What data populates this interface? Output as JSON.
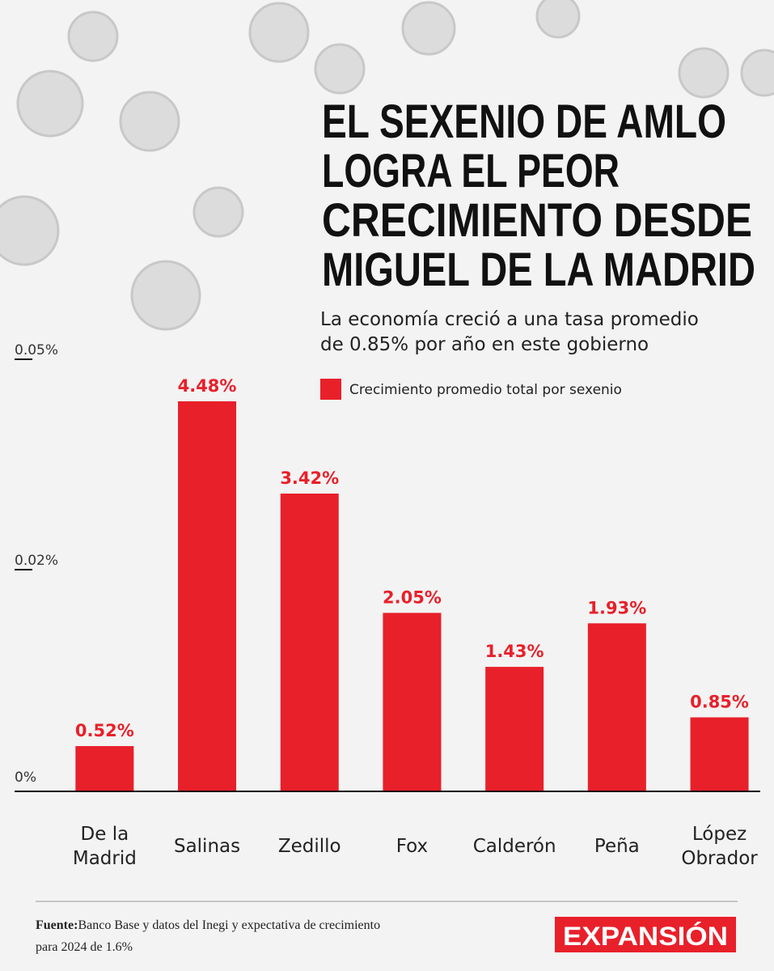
{
  "chart_data": {
    "type": "bar",
    "title_lines": [
      "EL SEXENIO DE AMLO",
      "LOGRA EL PEOR",
      "CRECIMIENTO DESDE",
      "MIGUEL DE LA MADRID"
    ],
    "subtitle_lines": [
      "La economía creció a una tasa promedio",
      "de 0.85% por año en este gobierno"
    ],
    "categories": [
      "De la Madrid",
      "Salinas",
      "Zedillo",
      "Fox",
      "Calderón",
      "Peña",
      "López Obrador"
    ],
    "series": [
      {
        "name": "Crecimiento promedio total por sexenio",
        "color": "#e8202a",
        "values": [
          0.52,
          4.48,
          3.42,
          2.05,
          1.43,
          1.93,
          0.85
        ],
        "value_labels": [
          "0.52%",
          "4.48%",
          "3.42%",
          "2.05%",
          "1.43%",
          "1.93%",
          "0.85%"
        ]
      }
    ],
    "y_axis_labels": [
      "0.05%",
      "0.02%",
      "0%"
    ],
    "ylim": [
      0,
      5
    ],
    "source_label": "Fuente:",
    "source": "Banco Base y datos del Inegi y expectativa de crecimiento para 2024 de 1.6%",
    "logo": "EXPANSIÓN"
  }
}
